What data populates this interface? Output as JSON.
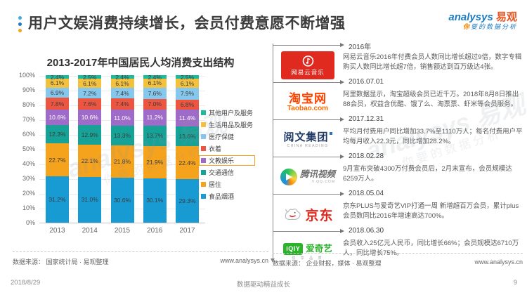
{
  "header": {
    "title": "用户文娱消费持续增长，会员付费意愿不断增强",
    "brand": {
      "en": "analysys",
      "cn": "易观",
      "tagline_accent": "你",
      "tagline": "要的数据分析"
    }
  },
  "chart_data": {
    "type": "bar",
    "stacked": true,
    "title": "2013-2017年中国居民人均消费支出结构",
    "categories": [
      "2013",
      "2014",
      "2015",
      "2016",
      "2017"
    ],
    "unit": "%",
    "ylim": [
      0,
      100
    ],
    "yticks": [
      "100%",
      "90%",
      "80%",
      "70%",
      "60%",
      "50%",
      "40%",
      "30%",
      "20%",
      "10%",
      "0%"
    ],
    "grid": true,
    "legend_position": "right",
    "series": [
      {
        "name": "食品烟酒",
        "color": "#189AD3",
        "values": [
          31.2,
          31.0,
          30.6,
          30.1,
          29.3
        ]
      },
      {
        "name": "居住",
        "color": "#F5A21C",
        "values": [
          22.7,
          22.1,
          21.8,
          21.9,
          22.4
        ]
      },
      {
        "name": "交通通信",
        "color": "#16A296",
        "values": [
          12.3,
          12.9,
          13.3,
          13.7,
          13.6
        ]
      },
      {
        "name": "文教娱乐",
        "color": "#9E6BC8",
        "values": [
          10.6,
          10.6,
          11.0,
          11.2,
          11.4
        ],
        "highlight": true,
        "label_color": "#ffffff"
      },
      {
        "name": "衣着",
        "color": "#EC5540",
        "values": [
          7.8,
          7.6,
          7.4,
          7.0,
          6.8
        ]
      },
      {
        "name": "医疗保健",
        "color": "#85C7ED",
        "values": [
          6.9,
          7.2,
          7.4,
          7.6,
          7.9
        ]
      },
      {
        "name": "生活用品及服务",
        "color": "#F3C13E",
        "values": [
          6.1,
          6.1,
          6.1,
          6.1,
          6.1
        ]
      },
      {
        "name": "其他用户及服务",
        "color": "#1FB99B",
        "values": [
          2.4,
          2.5,
          2.4,
          2.4,
          2.5
        ]
      }
    ],
    "source": "数据来源： 国家统计局 · 易观整理",
    "site": "www.analysys.cn"
  },
  "timeline": {
    "events": [
      {
        "date": "2016年",
        "desc": "网易云音乐2016年付费会员人数同比增长超过9倍，数字专辑购买人数同比增长超7倍，销售额达到百万级达4张。",
        "logo": {
          "name": "网易云音乐"
        }
      },
      {
        "date": "2016.07.01",
        "desc": "阿里数据显示，淘宝超级会员已近千万。2018年8月8日推出88会员，权益含优酷、饿了么、淘票票、虾米等会员服务。",
        "logo": {
          "name": "淘宝网",
          "sub": "Taobao.com"
        }
      },
      {
        "date": "2017.12.31",
        "desc": "平均月付费用户同比增加33.7%至1110万人；每名付费用户平均每月收入22.3元，同比增加28.2%。",
        "logo": {
          "name": "阅文集团",
          "sub": "CHINA READING"
        }
      },
      {
        "date": "2018.02.28",
        "desc": "9月宣布突破4300万付费会员后，2月末宣布，会员规模达6259万人。",
        "logo": {
          "name": "腾讯视频",
          "sub": "V.QQ.COM"
        }
      },
      {
        "date": "2018.05.04",
        "desc": "京东PLUS与爱奇艺VIP打通一周 新增超百万会员，累计plus会员数同比2016年增速高达700%。",
        "logo": {
          "name": "京东"
        }
      },
      {
        "date": "2018.06.30",
        "desc": "会员收入25亿元人民币，同比增长66%；会员规模达6710万人，同比增长75%。",
        "logo": {
          "box": "iQIY",
          "name": "爱奇艺",
          "sub": "悦 享 品 质"
        }
      }
    ],
    "source": "数据来源： 企业财报，媒体 · 易观整理",
    "site": "www.analysys.cn"
  },
  "watermark": {
    "line1": "analysys 易观",
    "line2": "你要的数据分析"
  },
  "footer": {
    "date": "2018/8/29",
    "center": "数据驱动精益成长",
    "page": "9"
  }
}
